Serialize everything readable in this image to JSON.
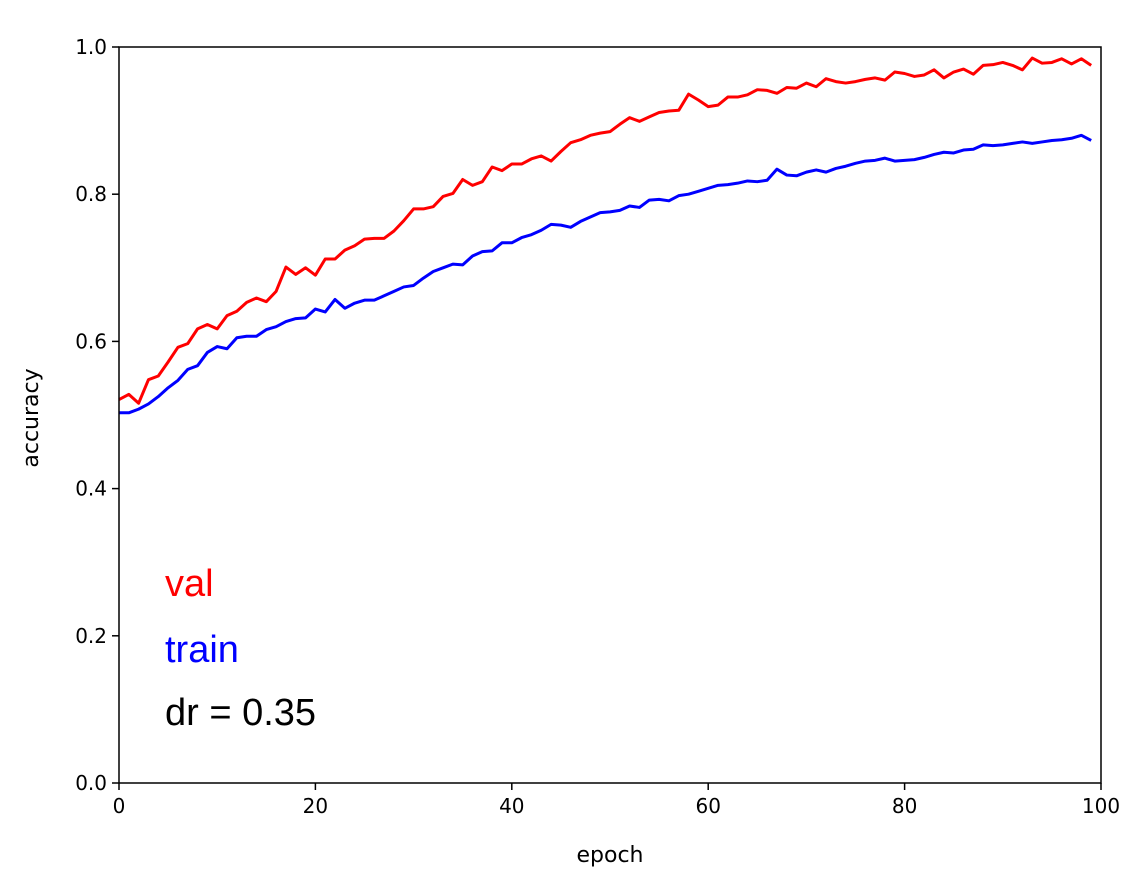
{
  "chart_data": {
    "type": "line",
    "xlabel": "epoch",
    "ylabel": "accuracy",
    "xlim": [
      0,
      100
    ],
    "ylim": [
      0.0,
      1.0
    ],
    "xticks": [
      0,
      20,
      40,
      60,
      80,
      100
    ],
    "yticks": [
      0.0,
      0.2,
      0.4,
      0.6,
      0.8,
      1.0
    ],
    "xtick_labels": [
      "0",
      "20",
      "40",
      "60",
      "80",
      "100"
    ],
    "ytick_labels": [
      "0.0",
      "0.2",
      "0.4",
      "0.6",
      "0.8",
      "1.0"
    ],
    "grid": false,
    "annotations": [
      {
        "text": "val",
        "color": "#ff0000"
      },
      {
        "text": "train",
        "color": "#0000ff"
      },
      {
        "text": "dr = 0.35",
        "color": "#000000"
      }
    ],
    "series": [
      {
        "color": "#ff0000",
        "x": [
          0,
          1,
          2,
          3,
          4,
          5,
          6,
          7,
          8,
          9,
          10,
          11,
          12,
          13,
          14,
          15,
          16,
          17,
          18,
          19,
          20,
          21,
          22,
          23,
          24,
          25,
          26,
          27,
          28,
          29,
          30,
          31,
          32,
          33,
          34,
          35,
          36,
          37,
          38,
          39,
          40,
          41,
          42,
          43,
          44,
          45,
          46,
          47,
          48,
          49,
          50,
          51,
          52,
          53,
          54,
          55,
          56,
          57,
          58,
          59,
          60,
          61,
          62,
          63,
          64,
          65,
          66,
          67,
          68,
          69,
          70,
          71,
          72,
          73,
          74,
          75,
          76,
          77,
          78,
          79,
          80,
          81,
          82,
          83,
          84,
          85,
          86,
          87,
          88,
          89,
          90,
          91,
          92,
          93,
          94,
          95,
          96,
          97,
          98,
          99
        ],
        "y": [
          0.521,
          0.528,
          0.516,
          0.548,
          0.553,
          0.572,
          0.592,
          0.597,
          0.617,
          0.623,
          0.617,
          0.635,
          0.641,
          0.653,
          0.659,
          0.654,
          0.668,
          0.701,
          0.691,
          0.7,
          0.69,
          0.712,
          0.712,
          0.724,
          0.73,
          0.739,
          0.74,
          0.74,
          0.75,
          0.764,
          0.78,
          0.78,
          0.783,
          0.797,
          0.801,
          0.82,
          0.812,
          0.817,
          0.837,
          0.832,
          0.841,
          0.841,
          0.848,
          0.852,
          0.845,
          0.858,
          0.87,
          0.874,
          0.88,
          0.883,
          0.885,
          0.895,
          0.904,
          0.899,
          0.905,
          0.911,
          0.913,
          0.914,
          0.936,
          0.928,
          0.919,
          0.921,
          0.932,
          0.932,
          0.935,
          0.942,
          0.941,
          0.937,
          0.945,
          0.944,
          0.951,
          0.946,
          0.957,
          0.953,
          0.951,
          0.953,
          0.956,
          0.958,
          0.955,
          0.966,
          0.964,
          0.96,
          0.962,
          0.969,
          0.958,
          0.966,
          0.97,
          0.963,
          0.975,
          0.976,
          0.979,
          0.975,
          0.969,
          0.985,
          0.978,
          0.979,
          0.984,
          0.977,
          0.984,
          0.975
        ]
      },
      {
        "color": "#0000ff",
        "x": [
          0,
          1,
          2,
          3,
          4,
          5,
          6,
          7,
          8,
          9,
          10,
          11,
          12,
          13,
          14,
          15,
          16,
          17,
          18,
          19,
          20,
          21,
          22,
          23,
          24,
          25,
          26,
          27,
          28,
          29,
          30,
          31,
          32,
          33,
          34,
          35,
          36,
          37,
          38,
          39,
          40,
          41,
          42,
          43,
          44,
          45,
          46,
          47,
          48,
          49,
          50,
          51,
          52,
          53,
          54,
          55,
          56,
          57,
          58,
          59,
          60,
          61,
          62,
          63,
          64,
          65,
          66,
          67,
          68,
          69,
          70,
          71,
          72,
          73,
          74,
          75,
          76,
          77,
          78,
          79,
          80,
          81,
          82,
          83,
          84,
          85,
          86,
          87,
          88,
          89,
          90,
          91,
          92,
          93,
          94,
          95,
          96,
          97,
          98,
          99
        ],
        "y": [
          0.503,
          0.503,
          0.508,
          0.515,
          0.525,
          0.537,
          0.547,
          0.562,
          0.567,
          0.585,
          0.593,
          0.59,
          0.605,
          0.607,
          0.607,
          0.616,
          0.62,
          0.627,
          0.631,
          0.632,
          0.644,
          0.64,
          0.657,
          0.645,
          0.652,
          0.656,
          0.656,
          0.662,
          0.668,
          0.674,
          0.676,
          0.686,
          0.695,
          0.7,
          0.705,
          0.704,
          0.716,
          0.722,
          0.723,
          0.734,
          0.734,
          0.741,
          0.745,
          0.751,
          0.759,
          0.758,
          0.755,
          0.763,
          0.769,
          0.775,
          0.776,
          0.778,
          0.784,
          0.782,
          0.792,
          0.793,
          0.791,
          0.798,
          0.8,
          0.804,
          0.808,
          0.812,
          0.813,
          0.815,
          0.818,
          0.817,
          0.819,
          0.834,
          0.826,
          0.825,
          0.83,
          0.833,
          0.83,
          0.835,
          0.838,
          0.842,
          0.845,
          0.846,
          0.849,
          0.845,
          0.846,
          0.847,
          0.85,
          0.854,
          0.857,
          0.856,
          0.86,
          0.861,
          0.867,
          0.866,
          0.867,
          0.869,
          0.871,
          0.869,
          0.871,
          0.873,
          0.874,
          0.876,
          0.88,
          0.873
        ]
      }
    ]
  }
}
